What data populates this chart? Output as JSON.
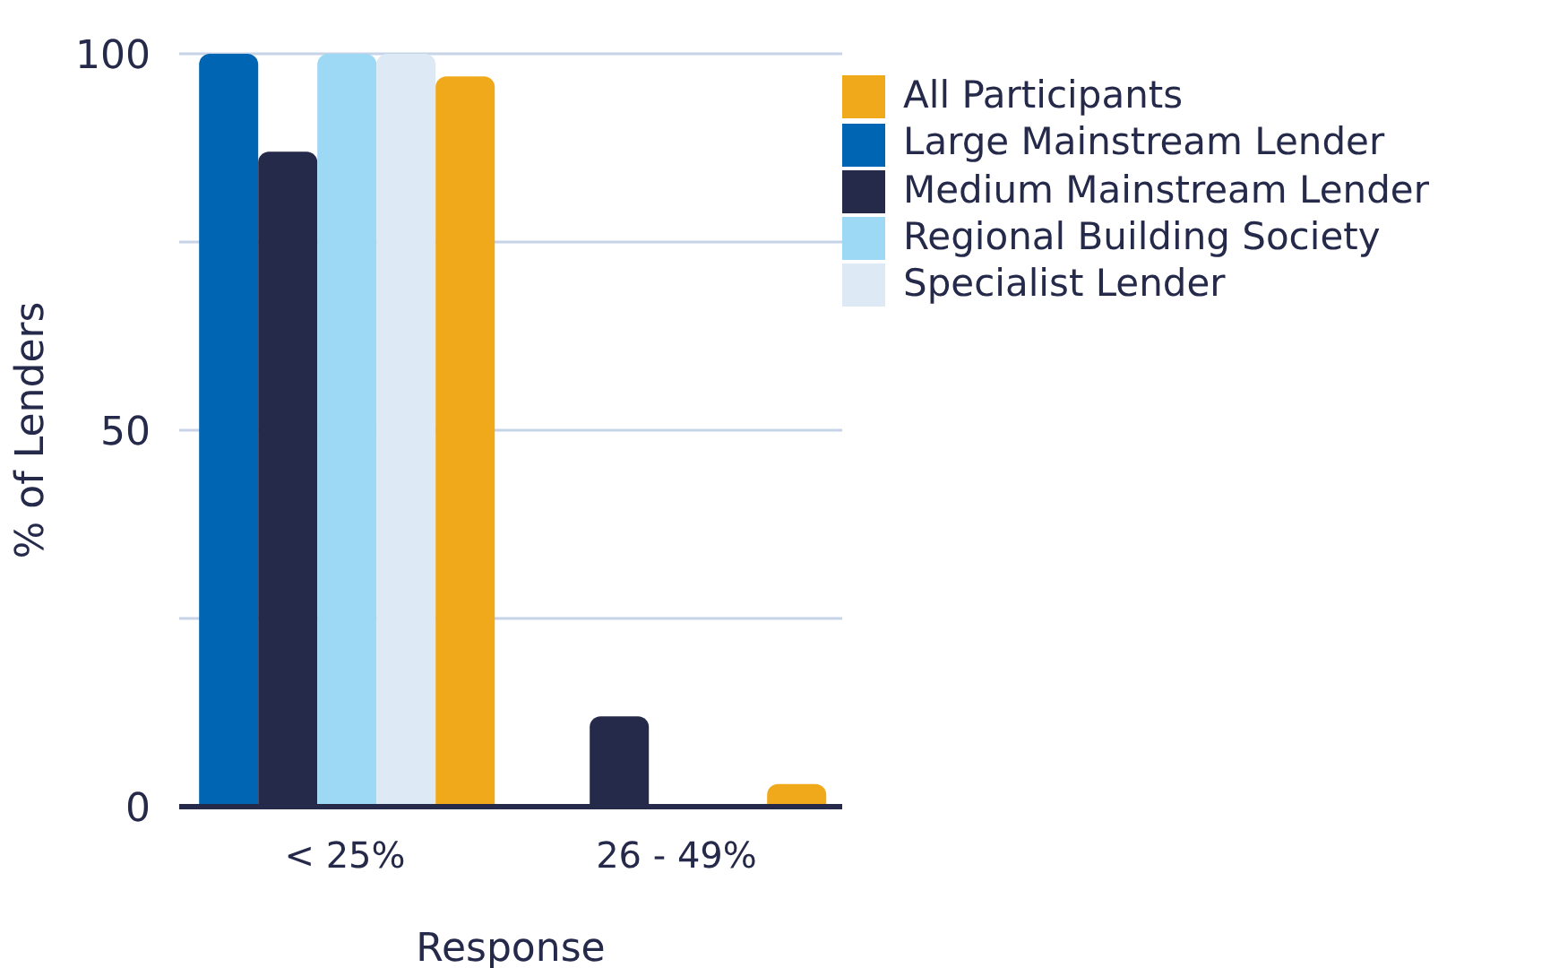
{
  "chart_data": {
    "type": "bar",
    "xlabel": "Response",
    "ylabel": "% of Lenders",
    "categories": [
      "< 25%",
      "26 - 49%"
    ],
    "series": [
      {
        "name": "Large Mainstream Lender",
        "color": "#0066b3",
        "values": [
          100,
          0
        ]
      },
      {
        "name": "Medium Mainstream Lender",
        "color": "#262a4a",
        "values": [
          87,
          12
        ]
      },
      {
        "name": "Regional Building Society",
        "color": "#9dd8f5",
        "values": [
          100,
          0
        ]
      },
      {
        "name": "Specialist Lender",
        "color": "#dde9f5",
        "values": [
          100,
          0
        ]
      },
      {
        "name": "All Participants",
        "color": "#f0a91b",
        "values": [
          97,
          3
        ]
      }
    ],
    "ylim": [
      0,
      100
    ],
    "yticks": [
      0,
      {
        "value": 25,
        "label": null
      },
      50,
      {
        "value": 75,
        "label": null
      },
      100
    ],
    "grid": "y",
    "legend": "top right"
  }
}
